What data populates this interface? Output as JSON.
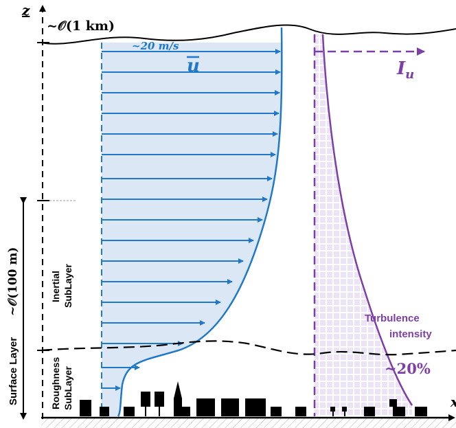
{
  "axes": {
    "z_label": "z",
    "x_label": "x"
  },
  "annotations": {
    "boundary_layer_height": "~𝒪(1 km)",
    "surface_layer_height": "~𝒪(100 m)",
    "surface_layer": "Surface Layer",
    "inertial_sublayer_line1": "Inertial",
    "inertial_sublayer_line2": "SubLayer",
    "roughness_sublayer_line1": "Roughness",
    "roughness_sublayer_line2": "SubLayer",
    "free_stream_velocity": "~20 m/s",
    "mean_velocity_symbol": "u",
    "turbulence_symbol": "I",
    "turbulence_subscript": "u",
    "turbulence_label_line1": "Turbulence",
    "turbulence_label_line2": "intensity",
    "turbulence_value": "~20%"
  },
  "colors": {
    "velocity": "#1f78c8",
    "velocity_fill": "#dbe7f5",
    "turbulence": "#7b3fa6",
    "turbulence_fill": "#e9def3",
    "ground": "#000000"
  }
}
